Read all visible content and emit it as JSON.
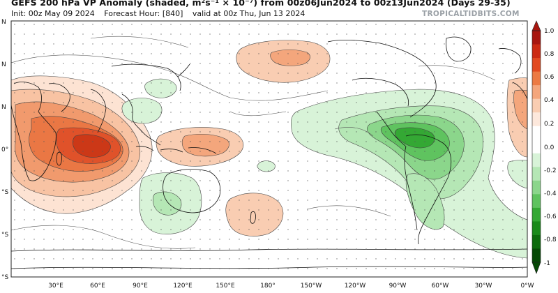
{
  "header": {
    "title": "GEFS 200 hPa VP Anomaly (shaded, m²s⁻¹ × 10⁻⁷) from 00z06Jun2024 to 00z13Jun2024 (Days 29-35)",
    "init": "Init: 00z May 09 2024",
    "forecast_hour": "Forecast Hour: [840]",
    "valid": "valid at 00z Thu, Jun 13 2024",
    "watermark": "TROPICALTIDBITS.COM"
  },
  "axes": {
    "lon_labels": [
      "30°E",
      "60°E",
      "90°E",
      "120°E",
      "150°E",
      "180°",
      "150°W",
      "120°W",
      "90°W",
      "60°W",
      "30°W",
      "0°W"
    ],
    "lat_labels": [
      "N",
      "N",
      "N",
      "0°",
      "°S",
      "°S",
      "°S"
    ]
  },
  "colorbar": {
    "labels": [
      "1.0",
      "0.8",
      "0.6",
      "0.4",
      "0.2",
      "0.0",
      "-0.2",
      "-0.4",
      "-0.6",
      "-0.8",
      "-1"
    ],
    "colors_top_to_bottom": [
      "#a8160f",
      "#cc2a12",
      "#e24a20",
      "#ec7a43",
      "#f4a67c",
      "#f9cdb2",
      "#fde8dc",
      "#ffffff",
      "#ffffff",
      "#d8f3d8",
      "#b5e7b5",
      "#8bd68b",
      "#5fc35f",
      "#34a834",
      "#1a8a1a",
      "#0c6b0c",
      "#054905"
    ]
  }
}
